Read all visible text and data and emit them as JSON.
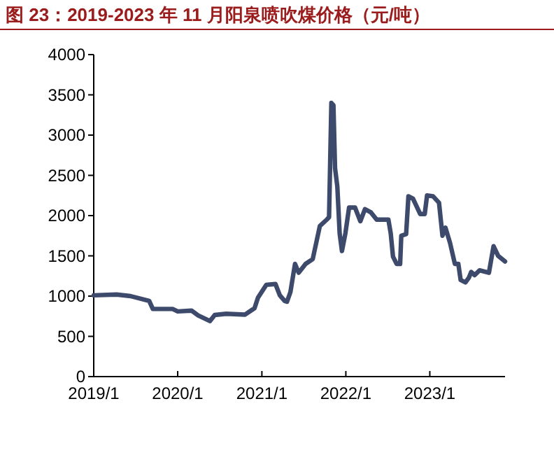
{
  "chart_data": {
    "type": "line",
    "title": "图 23：2019-2023 年 11 月阳泉喷吹煤价格（元/吨）",
    "x": [
      "2019-01-01",
      "2019-04-10",
      "2019-06-10",
      "2019-08-30",
      "2019-09-15",
      "2019-12-10",
      "2020-01-01",
      "2020-03-01",
      "2020-03-30",
      "2020-05-20",
      "2020-06-10",
      "2020-07-30",
      "2020-10-20",
      "2020-11-30",
      "2020-12-15",
      "2021-01-20",
      "2021-03-01",
      "2021-03-20",
      "2021-04-10",
      "2021-04-20",
      "2021-05-05",
      "2021-05-25",
      "2021-06-10",
      "2021-07-10",
      "2021-08-10",
      "2021-09-10",
      "2021-10-10",
      "2021-10-20",
      "2021-10-30",
      "2021-11-08",
      "2021-11-15",
      "2021-11-25",
      "2021-12-05",
      "2021-12-15",
      "2021-12-30",
      "2022-01-15",
      "2022-02-10",
      "2022-03-05",
      "2022-03-25",
      "2022-04-20",
      "2022-05-15",
      "2022-07-05",
      "2022-07-15",
      "2022-07-25",
      "2022-08-10",
      "2022-08-25",
      "2022-08-30",
      "2022-09-20",
      "2022-09-30",
      "2022-10-20",
      "2022-11-20",
      "2022-12-10",
      "2022-12-20",
      "2023-01-15",
      "2023-02-10",
      "2023-02-25",
      "2023-03-10",
      "2023-03-30",
      "2023-04-20",
      "2023-05-05",
      "2023-05-15",
      "2023-06-05",
      "2023-06-20",
      "2023-06-30",
      "2023-07-15",
      "2023-08-05",
      "2023-09-15",
      "2023-10-05",
      "2023-10-25",
      "2023-11-24"
    ],
    "series": [
      {
        "color": "#3d4a6b",
        "values": [
          1010,
          1020,
          1000,
          940,
          840,
          840,
          810,
          820,
          760,
          690,
          765,
          780,
          770,
          850,
          980,
          1140,
          1150,
          1010,
          940,
          930,
          1050,
          1400,
          1290,
          1400,
          1460,
          1870,
          1950,
          1980,
          3400,
          3370,
          2590,
          2360,
          1780,
          1560,
          1780,
          2100,
          2100,
          1930,
          2080,
          2040,
          1950,
          1950,
          1780,
          1490,
          1400,
          1400,
          1750,
          1770,
          2240,
          2210,
          2020,
          2020,
          2250,
          2240,
          2160,
          1750,
          1850,
          1660,
          1400,
          1400,
          1200,
          1170,
          1230,
          1300,
          1260,
          1320,
          1290,
          1620,
          1500,
          1430
        ]
      }
    ],
    "xlim": [
      "2019-01-01",
      "2023-11-24"
    ],
    "xticks": [
      {
        "value": "2019-01-01",
        "label": "2019/1"
      },
      {
        "value": "2020-01-01",
        "label": "2020/1"
      },
      {
        "value": "2021-01-01",
        "label": "2021/1"
      },
      {
        "value": "2022-01-01",
        "label": "2022/1"
      },
      {
        "value": "2023-01-01",
        "label": "2023/1"
      }
    ],
    "ylim": [
      0,
      4000
    ],
    "yticks": [
      0,
      500,
      1000,
      1500,
      2000,
      2500,
      3000,
      3500,
      4000
    ],
    "grid": false,
    "marker": "none",
    "line_style": "solid"
  }
}
